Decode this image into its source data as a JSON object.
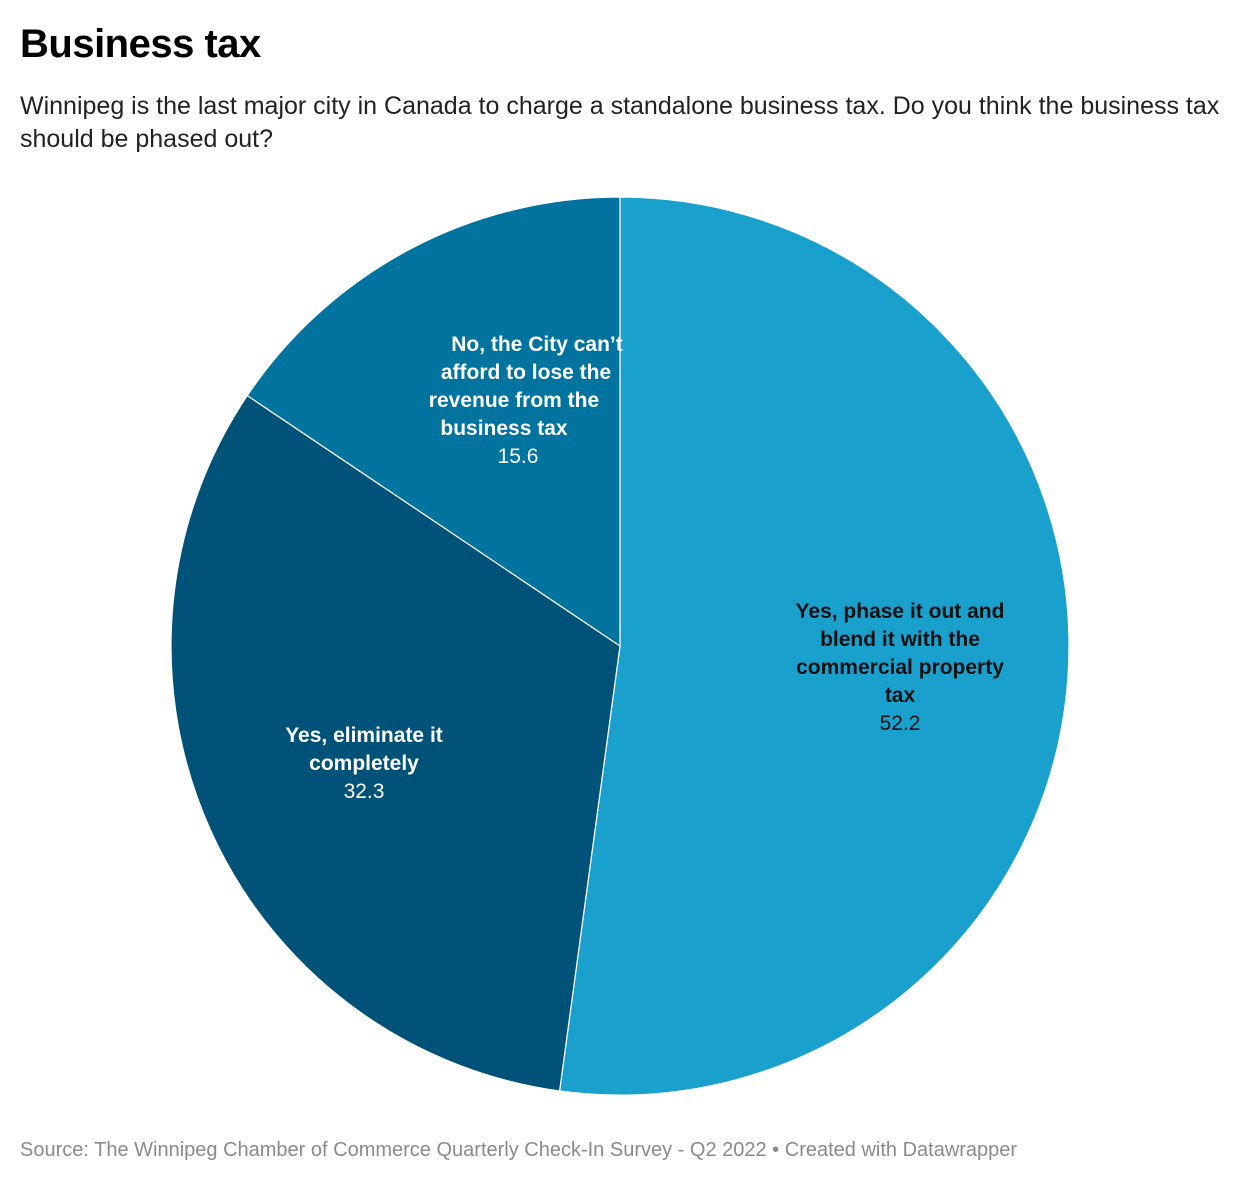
{
  "title": "Business tax",
  "subtitle": "Winnipeg is the last major city in Canada to charge a standalone business tax. Do you think the business tax should be phased out?",
  "footer": {
    "source": "Source: The Winnipeg Chamber of Commerce Quarterly Check-In Survey - Q2 2022",
    "separator": " • ",
    "credit": "Created with Datawrapper"
  },
  "chart_data": {
    "type": "pie",
    "title": "Business tax",
    "slices": [
      {
        "label": "Yes, phase it out and blend it with the commercial property tax",
        "label_lines": [
          "Yes, phase it out and",
          "blend it with the",
          "commercial property",
          "tax"
        ],
        "value": 52.2,
        "color": "#1aa0cd",
        "label_color": "#111111"
      },
      {
        "label": "Yes, eliminate it completely",
        "label_lines": [
          "Yes, eliminate it",
          "completely"
        ],
        "value": 32.3,
        "color": "#005279",
        "label_color": "#ffffff"
      },
      {
        "label": "No, the City can’t afford to lose the revenue from the business tax",
        "label_lines": [
          "No, the City can’t",
          "afford to lose the",
          "revenue from the",
          "business tax"
        ],
        "value": 15.6,
        "color": "#00739e",
        "label_color": "#ffffff"
      }
    ]
  }
}
